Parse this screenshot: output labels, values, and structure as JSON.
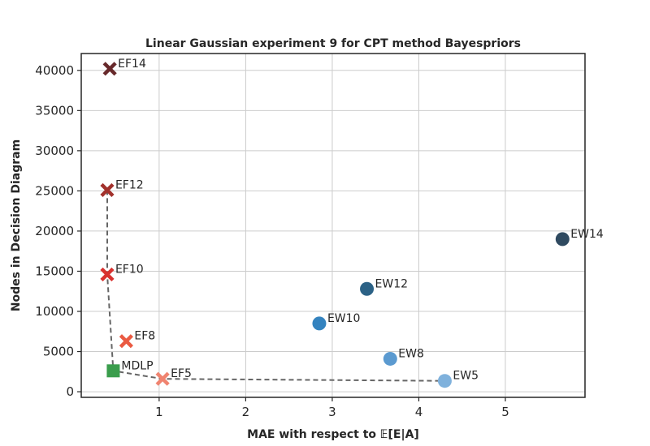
{
  "chart_data": {
    "type": "scatter",
    "title": "Linear Gaussian experiment 9 for CPT method Bayespriors",
    "xlabel": "MAE with respect to 𝔼[E|A]",
    "ylabel": "Nodes in Decision Diagram",
    "xlim": [
      0.1,
      5.92
    ],
    "ylim": [
      -700,
      42100
    ],
    "xticks": [
      1,
      2,
      3,
      4,
      5
    ],
    "yticks": [
      0,
      5000,
      10000,
      15000,
      20000,
      25000,
      30000,
      35000,
      40000
    ],
    "grid": true,
    "points": [
      {
        "label": "EF14",
        "x": 0.43,
        "y": 40200,
        "marker": "x",
        "color": "#67292b"
      },
      {
        "label": "EF12",
        "x": 0.4,
        "y": 25100,
        "marker": "x",
        "color": "#a2312c"
      },
      {
        "label": "EF10",
        "x": 0.4,
        "y": 14600,
        "marker": "x",
        "color": "#d9322f"
      },
      {
        "label": "EF8",
        "x": 0.62,
        "y": 6300,
        "marker": "x",
        "color": "#ea5a42"
      },
      {
        "label": "EF5",
        "x": 1.04,
        "y": 1600,
        "marker": "x",
        "color": "#f08470"
      },
      {
        "label": "MDLP",
        "x": 0.47,
        "y": 2600,
        "marker": "s",
        "color": "#3a9d4c"
      },
      {
        "label": "EW14",
        "x": 5.66,
        "y": 19000,
        "marker": "o",
        "color": "#2f4a60"
      },
      {
        "label": "EW12",
        "x": 3.4,
        "y": 12800,
        "marker": "o",
        "color": "#2c6286"
      },
      {
        "label": "EW10",
        "x": 2.85,
        "y": 8500,
        "marker": "o",
        "color": "#3483bf"
      },
      {
        "label": "EW8",
        "x": 3.67,
        "y": 4100,
        "marker": "o",
        "color": "#5b9ad0"
      },
      {
        "label": "EW5",
        "x": 4.3,
        "y": 1350,
        "marker": "o",
        "color": "#7fb1dc"
      }
    ],
    "pareto_front": [
      {
        "x": 0.4,
        "y": 25100
      },
      {
        "x": 0.4,
        "y": 14600
      },
      {
        "x": 0.47,
        "y": 2600
      },
      {
        "x": 1.04,
        "y": 1600
      },
      {
        "x": 4.3,
        "y": 1350
      }
    ]
  }
}
